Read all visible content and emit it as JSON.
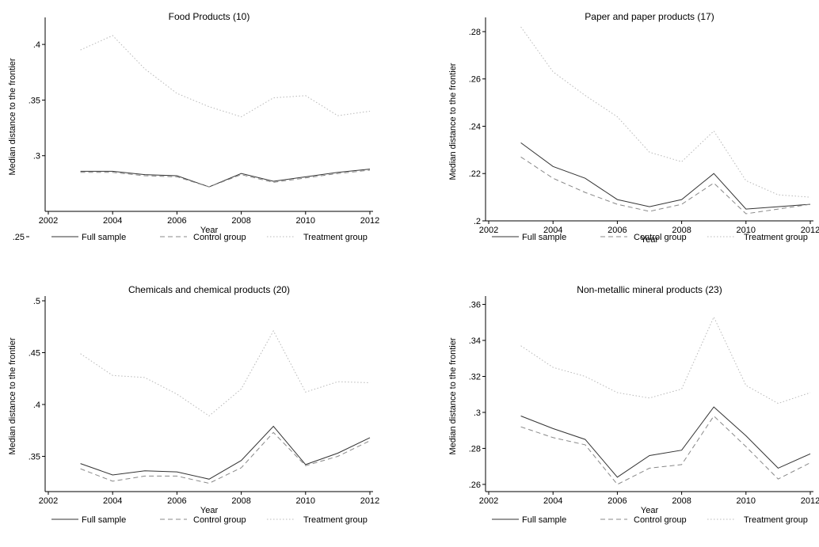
{
  "chart_data": [
    {
      "type": "line",
      "title": "Food Products (10)",
      "xlabel": "Year",
      "ylabel": "Median distance to the frontier",
      "xlim": [
        2002,
        2012
      ],
      "ylim": [
        0.25,
        0.42
      ],
      "xticks": [
        "2002",
        "2004",
        "2006",
        "2008",
        "2010",
        "2012"
      ],
      "yticks": [
        ".25",
        ".3",
        ".35",
        ".4"
      ],
      "x": [
        2003,
        2004,
        2005,
        2006,
        2007,
        2008,
        2009,
        2010,
        2011,
        2012
      ],
      "series": [
        {
          "name": "Full sample",
          "style": "solid",
          "values": [
            0.286,
            0.286,
            0.283,
            0.282,
            0.272,
            0.284,
            0.277,
            0.281,
            0.285,
            0.288
          ]
        },
        {
          "name": "Control group",
          "style": "dashed",
          "values": [
            0.285,
            0.285,
            0.282,
            0.281,
            0.272,
            0.283,
            0.276,
            0.28,
            0.284,
            0.287
          ]
        },
        {
          "name": "Treatment group",
          "style": "dotted",
          "values": [
            0.395,
            0.408,
            0.378,
            0.356,
            0.344,
            0.335,
            0.352,
            0.354,
            0.336,
            0.34
          ]
        }
      ],
      "legend": "bottom"
    },
    {
      "type": "line",
      "title": "Paper and paper products (17)",
      "xlabel": "Year",
      "ylabel": "Median distance to the frontier",
      "xlim": [
        2002,
        2012
      ],
      "ylim": [
        0.2,
        0.284
      ],
      "xticks": [
        "2002",
        "2004",
        "2006",
        "2008",
        "2010",
        "2012"
      ],
      "yticks": [
        ".2",
        ".22",
        ".24",
        ".26",
        ".28"
      ],
      "x": [
        2003,
        2004,
        2005,
        2006,
        2007,
        2008,
        2009,
        2010,
        2011,
        2012
      ],
      "series": [
        {
          "name": "Full sample",
          "style": "solid",
          "values": [
            0.233,
            0.223,
            0.218,
            0.209,
            0.206,
            0.209,
            0.22,
            0.205,
            0.206,
            0.207
          ]
        },
        {
          "name": "Control group",
          "style": "dashed",
          "values": [
            0.227,
            0.218,
            0.212,
            0.207,
            0.204,
            0.207,
            0.216,
            0.203,
            0.205,
            0.207
          ]
        },
        {
          "name": "Treatment group",
          "style": "dotted",
          "values": [
            0.282,
            0.263,
            0.253,
            0.244,
            0.229,
            0.225,
            0.238,
            0.217,
            0.211,
            0.21
          ]
        }
      ],
      "legend": "bottom"
    },
    {
      "type": "line",
      "title": "Chemicals and chemical products (20)",
      "xlabel": "Year",
      "ylabel": "Median distance to the frontier",
      "xlim": [
        2002,
        2012
      ],
      "ylim": [
        0.316,
        0.5
      ],
      "xticks": [
        "2002",
        "2004",
        "2006",
        "2008",
        "2010",
        "2012"
      ],
      "yticks": [
        ".35",
        ".4",
        ".45",
        ".5"
      ],
      "x": [
        2003,
        2004,
        2005,
        2006,
        2007,
        2008,
        2009,
        2010,
        2011,
        2012
      ],
      "series": [
        {
          "name": "Full sample",
          "style": "solid",
          "values": [
            0.343,
            0.332,
            0.336,
            0.335,
            0.328,
            0.346,
            0.379,
            0.342,
            0.353,
            0.368
          ]
        },
        {
          "name": "Control group",
          "style": "dashed",
          "values": [
            0.338,
            0.326,
            0.331,
            0.331,
            0.324,
            0.339,
            0.373,
            0.341,
            0.35,
            0.365
          ]
        },
        {
          "name": "Treatment group",
          "style": "dotted",
          "values": [
            0.449,
            0.428,
            0.426,
            0.41,
            0.389,
            0.415,
            0.471,
            0.412,
            0.422,
            0.421
          ]
        }
      ],
      "legend": "bottom"
    },
    {
      "type": "line",
      "title": "Non-metallic mineral products (23)",
      "xlabel": "Year",
      "ylabel": "Median distance to the frontier",
      "xlim": [
        2002,
        2012
      ],
      "ylim": [
        0.256,
        0.362
      ],
      "xticks": [
        "2002",
        "2004",
        "2006",
        "2008",
        "2010",
        "2012"
      ],
      "yticks": [
        ".26",
        ".28",
        ".3",
        ".32",
        ".34",
        ".36"
      ],
      "x": [
        2003,
        2004,
        2005,
        2006,
        2007,
        2008,
        2009,
        2010,
        2011,
        2012
      ],
      "series": [
        {
          "name": "Full sample",
          "style": "solid",
          "values": [
            0.298,
            0.291,
            0.285,
            0.264,
            0.276,
            0.279,
            0.303,
            0.287,
            0.269,
            0.277
          ]
        },
        {
          "name": "Control group",
          "style": "dashed",
          "values": [
            0.292,
            0.286,
            0.282,
            0.26,
            0.269,
            0.271,
            0.298,
            0.281,
            0.263,
            0.272
          ]
        },
        {
          "name": "Treatment group",
          "style": "dotted",
          "values": [
            0.337,
            0.325,
            0.32,
            0.311,
            0.308,
            0.313,
            0.353,
            0.315,
            0.305,
            0.311
          ]
        }
      ],
      "legend": "bottom"
    }
  ]
}
